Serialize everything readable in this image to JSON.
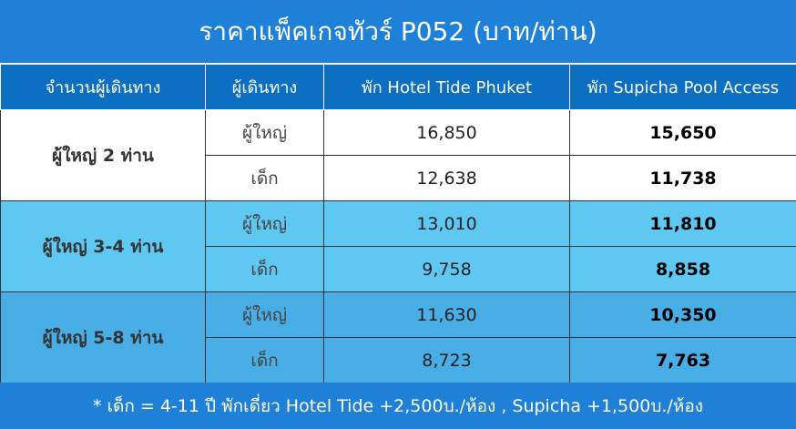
{
  "header": {
    "title": "ราคาแพ็คเกจทัวร์ P052 (บาท/ท่าน)"
  },
  "table": {
    "columns": [
      "จำนวนผู้เดินทาง",
      "ผู้เดินทาง",
      "พัก Hotel Tide Phuket",
      "พัก Supicha Pool Access"
    ],
    "groups": [
      {
        "label": "ผู้ใหญ่ 2 ท่าน",
        "rows": [
          [
            "ผู้ใหญ่",
            "16,850",
            "15,650"
          ],
          [
            "เด็ก",
            "12,638",
            "11,738"
          ]
        ]
      },
      {
        "label": "ผู้ใหญ่ 3-4 ท่าน",
        "rows": [
          [
            "ผู้ใหญ่",
            "13,010",
            "11,810"
          ],
          [
            "เด็ก",
            "9,758",
            "8,858"
          ]
        ]
      },
      {
        "label": "ผู้ใหญ่ 5-8 ท่าน",
        "rows": [
          [
            "ผู้ใหญ่",
            "11,630",
            "10,350"
          ],
          [
            "เด็ก",
            "8,723",
            "7,763"
          ]
        ]
      }
    ]
  },
  "footer": "* เด็ก = 4-11 ปี พักเดี่ยว Hotel Tide +2,500บ./ห้อง , Supicha +1,500บ./ห้อง"
}
